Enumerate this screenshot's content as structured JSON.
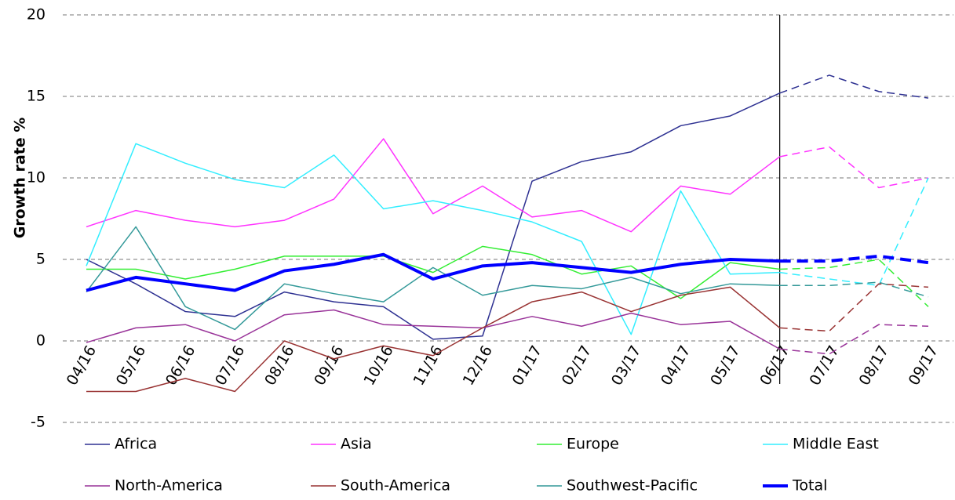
{
  "chart_data": {
    "type": "line",
    "y_label": "Growth rate %",
    "categories": [
      "04/16",
      "05/16",
      "06/16",
      "07/16",
      "08/16",
      "09/16",
      "10/16",
      "11/16",
      "12/16",
      "01/17",
      "02/17",
      "03/17",
      "04/17",
      "05/17",
      "06/17",
      "07/17",
      "08/17",
      "09/17"
    ],
    "forecast_start_index": 14,
    "ylim": [
      -5,
      20
    ],
    "yticks": [
      -5,
      0,
      5,
      10,
      15,
      20
    ],
    "grid": true,
    "series": [
      {
        "name": "Africa",
        "color": "#2e3192",
        "values": [
          5.0,
          3.5,
          1.8,
          1.5,
          3.0,
          2.4,
          2.1,
          0.1,
          0.3,
          9.8,
          11.0,
          11.6,
          13.2,
          13.8,
          15.2,
          16.3,
          15.3,
          14.9
        ]
      },
      {
        "name": "Asia",
        "color": "#ff33ff",
        "values": [
          7.0,
          8.0,
          7.4,
          7.0,
          7.4,
          8.7,
          12.4,
          7.8,
          9.5,
          7.6,
          8.0,
          6.7,
          9.5,
          9.0,
          11.3,
          11.9,
          9.4,
          10.0
        ]
      },
      {
        "name": "Europe",
        "color": "#33ee33",
        "values": [
          4.4,
          4.4,
          3.8,
          4.4,
          5.2,
          5.2,
          5.2,
          4.2,
          5.8,
          5.3,
          4.1,
          4.6,
          2.6,
          4.8,
          4.4,
          4.5,
          5.0,
          2.1
        ]
      },
      {
        "name": "Middle East",
        "color": "#33eeff",
        "values": [
          4.6,
          12.1,
          10.9,
          9.9,
          9.4,
          11.4,
          8.1,
          8.6,
          8.0,
          7.3,
          6.1,
          0.4,
          9.2,
          4.1,
          4.2,
          3.8,
          3.4,
          10.0
        ]
      },
      {
        "name": "North-America",
        "color": "#993399",
        "values": [
          -0.1,
          0.8,
          1.0,
          0.0,
          1.6,
          1.9,
          1.0,
          0.9,
          0.8,
          1.5,
          0.9,
          1.7,
          1.0,
          1.2,
          -0.5,
          -0.8,
          1.0,
          0.9
        ]
      },
      {
        "name": "South-America",
        "color": "#993333",
        "values": [
          -3.1,
          -3.1,
          -2.3,
          -3.1,
          0.0,
          -1.1,
          -0.3,
          -0.9,
          0.8,
          2.4,
          3.0,
          1.8,
          2.8,
          3.3,
          0.8,
          0.6,
          3.5,
          3.3
        ]
      },
      {
        "name": "Southwest-Pacific",
        "color": "#339999",
        "values": [
          3.0,
          7.0,
          2.1,
          0.7,
          3.5,
          2.9,
          2.4,
          4.5,
          2.8,
          3.4,
          3.2,
          3.9,
          2.9,
          3.5,
          3.4,
          3.4,
          3.6,
          2.7
        ]
      },
      {
        "name": "Total",
        "color": "#0000ff",
        "width": 4,
        "values": [
          3.1,
          3.9,
          3.5,
          3.1,
          4.3,
          4.7,
          5.3,
          3.8,
          4.6,
          4.8,
          4.5,
          4.2,
          4.7,
          5.0,
          4.9,
          4.9,
          5.2,
          4.8
        ]
      }
    ]
  }
}
